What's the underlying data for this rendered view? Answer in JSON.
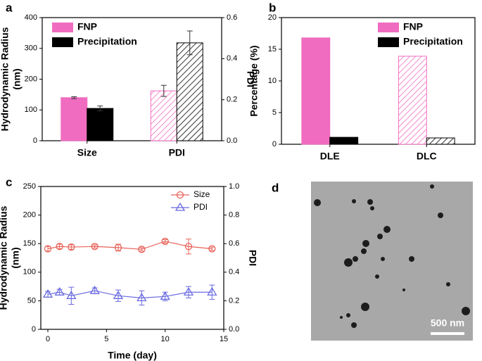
{
  "chart_data": [
    {
      "type": "bar",
      "panel_label": "a",
      "categories": [
        "Size",
        "PDI"
      ],
      "category_axis": [
        "y",
        "y2"
      ],
      "hatch": [
        false,
        true
      ],
      "ylabel": [
        "Hydrodynamic Radius",
        "(nm)"
      ],
      "y2label": "PDI",
      "ylim": [
        0,
        400
      ],
      "yticks": [
        0,
        100,
        200,
        300,
        400
      ],
      "y2lim": [
        0,
        0.6
      ],
      "y2ticks": [
        {
          "value": 0,
          "label": "0.0"
        },
        0.2,
        0.4,
        0.6
      ],
      "legend": "upper left",
      "series": [
        {
          "name": "FNP",
          "color": "#f06cc0",
          "values": [
            140,
            0.243
          ],
          "errors": [
            3,
            0.027
          ]
        },
        {
          "name": "Precipitation",
          "color": "#000000",
          "values": [
            105,
            0.477
          ],
          "errors": [
            8,
            0.058
          ]
        }
      ]
    },
    {
      "type": "bar",
      "panel_label": "b",
      "categories": [
        "DLE",
        "DLC"
      ],
      "category_axis": [
        "y",
        "y"
      ],
      "hatch": [
        false,
        true
      ],
      "ylabel": [
        "Percentage (%)"
      ],
      "ylim": [
        0,
        20
      ],
      "yticks": [
        0,
        5,
        10,
        15,
        20
      ],
      "legend": "upper right",
      "series": [
        {
          "name": "FNP",
          "color": "#f06cc0",
          "values": [
            16.8,
            13.9
          ]
        },
        {
          "name": "Precipitation",
          "color": "#000000",
          "values": [
            1.1,
            1.0
          ]
        }
      ]
    },
    {
      "type": "line",
      "panel_label": "c",
      "xlabel": "Time (day)",
      "ylabel": [
        "Hydrodynamic Radius",
        "(nm)"
      ],
      "y2label": "PDI",
      "x": [
        0,
        1,
        2,
        4,
        6,
        8,
        10,
        12,
        14
      ],
      "xlim": [
        -0.6,
        15
      ],
      "xticks": [
        0,
        5,
        10,
        15
      ],
      "ylim": [
        0,
        250
      ],
      "yticks": [
        0,
        50,
        100,
        150,
        200,
        250
      ],
      "y2lim": [
        0,
        1
      ],
      "y2ticks": [
        {
          "value": 0,
          "label": "0.0"
        },
        0.2,
        0.4,
        0.6,
        0.8,
        {
          "value": 1,
          "label": "1.0"
        }
      ],
      "legend": "upper right",
      "series": [
        {
          "name": "Size",
          "color": "#e8635a",
          "marker": "circle",
          "axis": "y",
          "values": [
            141,
            145,
            144,
            145,
            143,
            140,
            154,
            145,
            141
          ],
          "errors": [
            4,
            4,
            4,
            3,
            6,
            3,
            3,
            13,
            3
          ]
        },
        {
          "name": "PDI",
          "color": "#6a6ae0",
          "marker": "triangle",
          "axis": "y2",
          "values": [
            0.245,
            0.26,
            0.235,
            0.27,
            0.235,
            0.22,
            0.23,
            0.26,
            0.26
          ],
          "errors": [
            0.02,
            0.02,
            0.06,
            0.02,
            0.04,
            0.05,
            0.03,
            0.04,
            0.05
          ]
        }
      ]
    }
  ],
  "image_panel": {
    "label": "d",
    "scale_bar": "500 nm"
  }
}
